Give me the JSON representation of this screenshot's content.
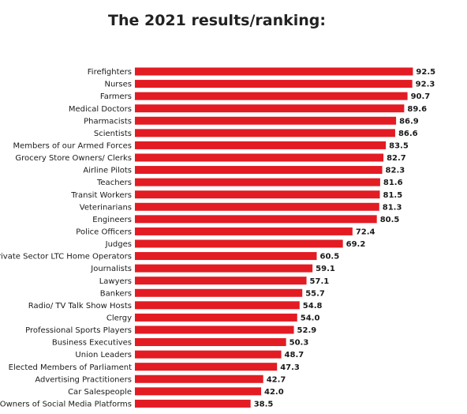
{
  "chart_data": {
    "type": "bar",
    "orientation": "horizontal",
    "title": "The 2021 results/ranking:",
    "xlabel": "",
    "ylabel": "",
    "xlim": [
      0,
      100
    ],
    "grid": false,
    "bar_color": "#e31b23",
    "categories": [
      "Firefighters",
      "Nurses",
      "Farmers",
      "Medical Doctors",
      "Pharmacists",
      "Scientists",
      "Members of our Armed Forces",
      "Grocery Store Owners/ Clerks",
      "Airline Pilots",
      "Teachers",
      "Transit Workers",
      "Veterinarians",
      "Engineers",
      "Police Officers",
      "Judges",
      "Private Sector LTC Home Operators",
      "Journalists",
      "Lawyers",
      "Bankers",
      "Radio/ TV Talk Show Hosts",
      "Clergy",
      "Professional Sports Players",
      "Business Executives",
      "Union Leaders",
      "Elected Members of Parliament",
      "Advertising Practitioners",
      "Car Salespeople",
      "Owners of Social Media Platforms"
    ],
    "values": [
      92.5,
      92.3,
      90.7,
      89.6,
      86.9,
      86.6,
      83.5,
      82.7,
      82.3,
      81.6,
      81.5,
      81.3,
      80.5,
      72.4,
      69.2,
      60.5,
      59.1,
      57.1,
      55.7,
      54.8,
      54.0,
      52.9,
      50.3,
      48.7,
      47.3,
      42.7,
      42.0,
      38.5
    ],
    "value_labels": [
      "92.5",
      "92.3",
      "90.7",
      "89.6",
      "86.9",
      "86.6",
      "83.5",
      "82.7",
      "82.3",
      "81.6",
      "81.5",
      "81.3",
      "80.5",
      "72.4",
      "69.2",
      "60.5",
      "59.1",
      "57.1",
      "55.7",
      "54.8",
      "54.0",
      "52.9",
      "50.3",
      "48.7",
      "47.3",
      "42.7",
      "42.0",
      "38.5"
    ]
  }
}
